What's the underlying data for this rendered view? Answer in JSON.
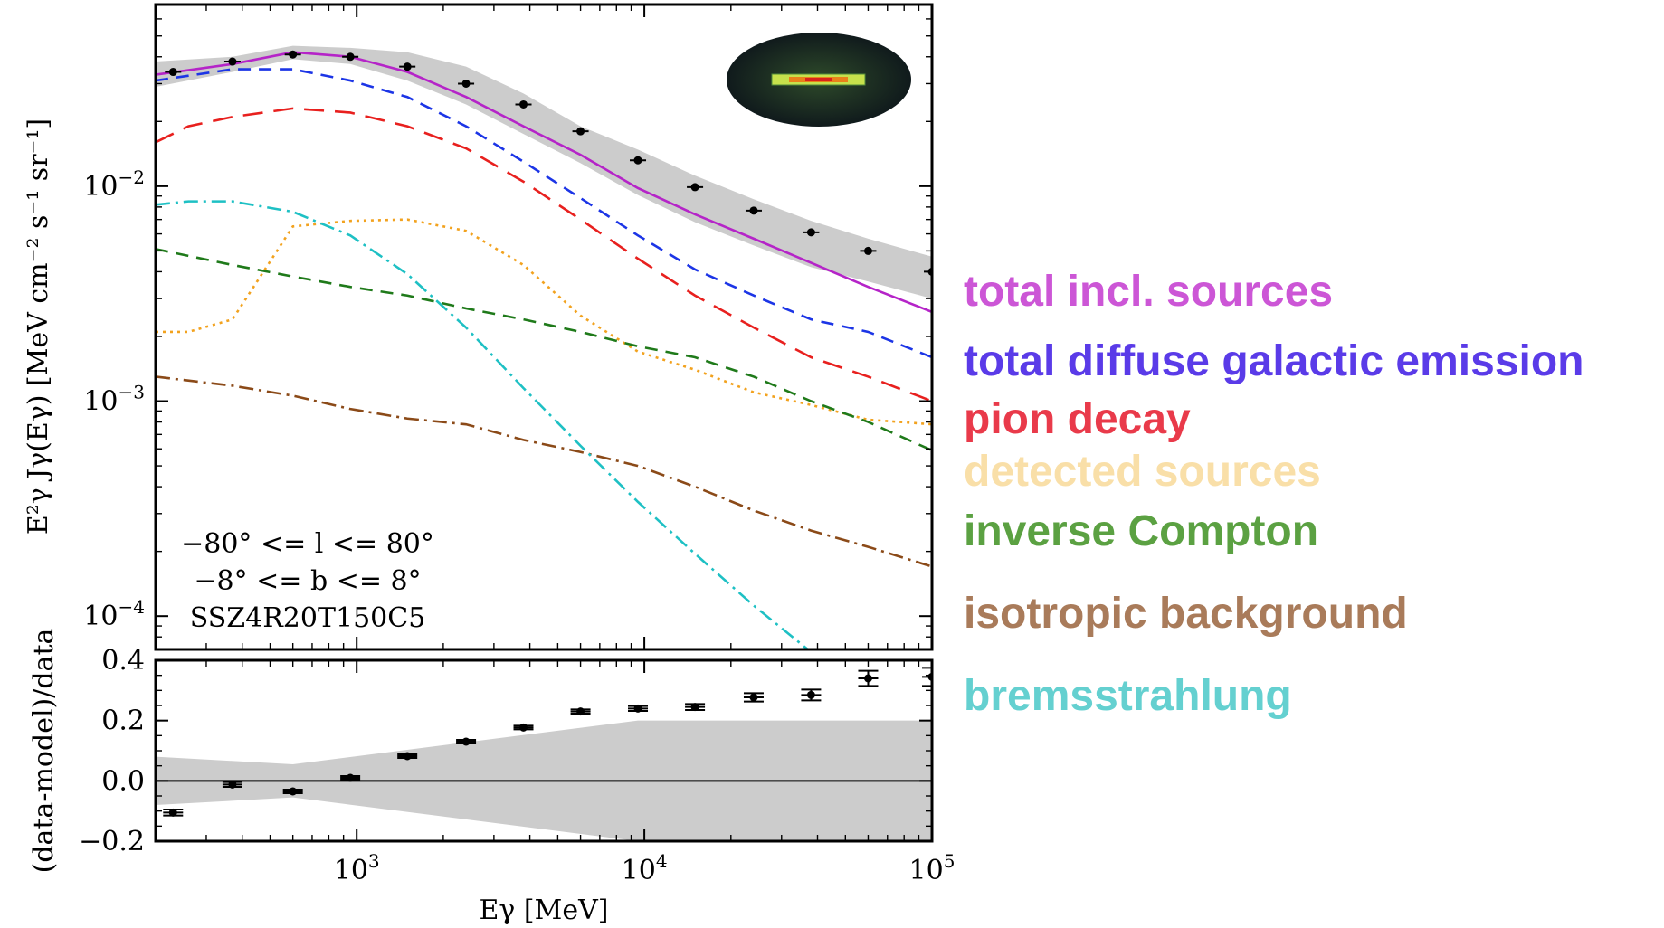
{
  "chart_data": [
    {
      "panel": "spectrum",
      "type": "line",
      "xlabel": "Eγ [MeV]",
      "ylabel": "E²γ Jγ(Eγ) [MeV cm⁻² s⁻¹ sr⁻¹]",
      "xscale": "log",
      "yscale": "log",
      "xlim": [
        200,
        100000
      ],
      "ylim": [
        7e-05,
        0.07
      ],
      "annotations": [
        "−80° <= l <= 80°",
        "−8° <= b <= 8°",
        "SSZ4R20T150C5"
      ],
      "series": [
        {
          "name": "total incl. sources",
          "color": "#b524c8",
          "style": "solid",
          "points": [
            [
              200,
              0.033
            ],
            [
              370,
              0.037
            ],
            [
              600,
              0.042
            ],
            [
              950,
              0.04
            ],
            [
              1500,
              0.034
            ],
            [
              2400,
              0.026
            ],
            [
              3800,
              0.019
            ],
            [
              6000,
              0.014
            ],
            [
              9500,
              0.0098
            ],
            [
              15000,
              0.0074
            ],
            [
              24000,
              0.0057
            ],
            [
              38000,
              0.0044
            ],
            [
              60000,
              0.0034
            ],
            [
              100000,
              0.0026
            ]
          ]
        },
        {
          "name": "total diffuse galactic emission",
          "color": "#1c35e6",
          "style": "dashed",
          "points": [
            [
              200,
              0.031
            ],
            [
              370,
              0.035
            ],
            [
              600,
              0.035
            ],
            [
              950,
              0.031
            ],
            [
              1500,
              0.026
            ],
            [
              2400,
              0.019
            ],
            [
              3800,
              0.013
            ],
            [
              6000,
              0.0088
            ],
            [
              9500,
              0.0059
            ],
            [
              15000,
              0.0041
            ],
            [
              24000,
              0.0031
            ],
            [
              38000,
              0.0024
            ],
            [
              60000,
              0.0021
            ],
            [
              100000,
              0.0016
            ]
          ]
        },
        {
          "name": "pion decay",
          "color": "#e8201e",
          "style": "longdash",
          "points": [
            [
              200,
              0.016
            ],
            [
              260,
              0.019
            ],
            [
              370,
              0.021
            ],
            [
              600,
              0.023
            ],
            [
              950,
              0.022
            ],
            [
              1500,
              0.019
            ],
            [
              2400,
              0.015
            ],
            [
              3800,
              0.0105
            ],
            [
              6000,
              0.007
            ],
            [
              9500,
              0.0046
            ],
            [
              15000,
              0.0031
            ],
            [
              24000,
              0.0022
            ],
            [
              38000,
              0.0016
            ],
            [
              60000,
              0.0013
            ],
            [
              100000,
              0.001
            ]
          ]
        },
        {
          "name": "detected sources",
          "color": "#f2a21e",
          "style": "dotted",
          "points": [
            [
              200,
              0.0021
            ],
            [
              260,
              0.0021
            ],
            [
              370,
              0.0024
            ],
            [
              600,
              0.0065
            ],
            [
              950,
              0.0069
            ],
            [
              1500,
              0.007
            ],
            [
              2400,
              0.0062
            ],
            [
              3800,
              0.0043
            ],
            [
              6000,
              0.0025
            ],
            [
              9500,
              0.0017
            ],
            [
              15000,
              0.0014
            ],
            [
              24000,
              0.0011
            ],
            [
              38000,
              0.00096
            ],
            [
              60000,
              0.00082
            ],
            [
              100000,
              0.00078
            ]
          ]
        },
        {
          "name": "inverse Compton",
          "color": "#1f7a1a",
          "style": "dashed",
          "points": [
            [
              200,
              0.0051
            ],
            [
              370,
              0.0043
            ],
            [
              600,
              0.0038
            ],
            [
              950,
              0.0034
            ],
            [
              1500,
              0.0031
            ],
            [
              2400,
              0.0027
            ],
            [
              3800,
              0.0024
            ],
            [
              6000,
              0.0021
            ],
            [
              9500,
              0.0018
            ],
            [
              15000,
              0.0016
            ],
            [
              24000,
              0.0013
            ],
            [
              38000,
              0.001
            ],
            [
              60000,
              0.0008
            ],
            [
              100000,
              0.00059
            ]
          ]
        },
        {
          "name": "isotropic background",
          "color": "#8b4a18",
          "style": "dashdot",
          "points": [
            [
              200,
              0.0013
            ],
            [
              370,
              0.00118
            ],
            [
              600,
              0.00106
            ],
            [
              950,
              0.00092
            ],
            [
              1500,
              0.00083
            ],
            [
              2400,
              0.00078
            ],
            [
              3800,
              0.00066
            ],
            [
              6000,
              0.00058
            ],
            [
              9500,
              0.0005
            ],
            [
              15000,
              0.0004
            ],
            [
              24000,
              0.00031
            ],
            [
              38000,
              0.00025
            ],
            [
              60000,
              0.00021
            ],
            [
              100000,
              0.00017
            ]
          ]
        },
        {
          "name": "bremsstrahlung",
          "color": "#1ec0c4",
          "style": "dashdot",
          "points": [
            [
              200,
              0.0082
            ],
            [
              260,
              0.0085
            ],
            [
              370,
              0.0085
            ],
            [
              600,
              0.0076
            ],
            [
              950,
              0.0059
            ],
            [
              1500,
              0.0039
            ],
            [
              2400,
              0.0022
            ],
            [
              3800,
              0.00115
            ],
            [
              6000,
              0.00062
            ],
            [
              9500,
              0.00034
            ],
            [
              15000,
              0.000195
            ],
            [
              24000,
              0.000112
            ],
            [
              38000,
              6.8e-05
            ],
            [
              60000,
              4e-05
            ]
          ]
        }
      ],
      "band": {
        "lower": [
          [
            200,
            0.029
          ],
          [
            370,
            0.034
          ],
          [
            600,
            0.039
          ],
          [
            950,
            0.037
          ],
          [
            1500,
            0.031
          ],
          [
            2400,
            0.024
          ],
          [
            3800,
            0.0175
          ],
          [
            6000,
            0.0128
          ],
          [
            9500,
            0.0091
          ],
          [
            15000,
            0.0068
          ],
          [
            24000,
            0.0053
          ],
          [
            38000,
            0.0042
          ],
          [
            60000,
            0.0036
          ],
          [
            100000,
            0.003
          ]
        ],
        "upper": [
          [
            200,
            0.038
          ],
          [
            370,
            0.04
          ],
          [
            600,
            0.045
          ],
          [
            950,
            0.044
          ],
          [
            1500,
            0.042
          ],
          [
            2400,
            0.036
          ],
          [
            3800,
            0.027
          ],
          [
            6000,
            0.019
          ],
          [
            9500,
            0.0148
          ],
          [
            15000,
            0.0112
          ],
          [
            24000,
            0.0087
          ],
          [
            38000,
            0.0069
          ],
          [
            60000,
            0.0057
          ],
          [
            100000,
            0.0047
          ]
        ]
      },
      "data_points": [
        {
          "x": 230,
          "y": 0.034
        },
        {
          "x": 370,
          "y": 0.038
        },
        {
          "x": 600,
          "y": 0.041
        },
        {
          "x": 950,
          "y": 0.04
        },
        {
          "x": 1500,
          "y": 0.036
        },
        {
          "x": 2400,
          "y": 0.03
        },
        {
          "x": 3800,
          "y": 0.024
        },
        {
          "x": 6000,
          "y": 0.018
        },
        {
          "x": 9500,
          "y": 0.0132
        },
        {
          "x": 15000,
          "y": 0.0099
        },
        {
          "x": 24000,
          "y": 0.0077
        },
        {
          "x": 38000,
          "y": 0.0061
        },
        {
          "x": 60000,
          "y": 0.005
        },
        {
          "x": 100000,
          "y": 0.004
        }
      ]
    },
    {
      "panel": "residual",
      "type": "scatter",
      "xlabel": "Eγ [MeV]",
      "ylabel": "(data-model)/data",
      "xscale": "log",
      "xlim": [
        200,
        100000
      ],
      "ylim": [
        -0.2,
        0.4
      ],
      "yticks": [
        "−0.2",
        "0.0",
        "0.2",
        "0.4"
      ],
      "band": {
        "upper": [
          [
            200,
            0.08
          ],
          [
            600,
            0.055
          ],
          [
            9500,
            0.2
          ],
          [
            100000,
            0.2
          ]
        ],
        "lower": [
          [
            200,
            -0.08
          ],
          [
            600,
            -0.055
          ],
          [
            9500,
            -0.2
          ],
          [
            100000,
            -0.2
          ]
        ]
      },
      "data_points": [
        {
          "x": 230,
          "y": -0.105,
          "err": 0.01
        },
        {
          "x": 370,
          "y": -0.012,
          "err": 0.008
        },
        {
          "x": 600,
          "y": -0.035,
          "err": 0.006
        },
        {
          "x": 950,
          "y": 0.01,
          "err": 0.006
        },
        {
          "x": 1500,
          "y": 0.082,
          "err": 0.006
        },
        {
          "x": 2400,
          "y": 0.13,
          "err": 0.006
        },
        {
          "x": 3800,
          "y": 0.177,
          "err": 0.006
        },
        {
          "x": 6000,
          "y": 0.23,
          "err": 0.007
        },
        {
          "x": 9500,
          "y": 0.24,
          "err": 0.008
        },
        {
          "x": 15000,
          "y": 0.245,
          "err": 0.01
        },
        {
          "x": 24000,
          "y": 0.277,
          "err": 0.014
        },
        {
          "x": 38000,
          "y": 0.285,
          "err": 0.018
        },
        {
          "x": 60000,
          "y": 0.34,
          "err": 0.025
        },
        {
          "x": 100000,
          "y": 0.345,
          "err": 0.03
        }
      ]
    }
  ],
  "legend": [
    {
      "label": "total incl. sources",
      "color": "#cc56d6"
    },
    {
      "label": "total diffuse galactic emission",
      "color": "#5a3be8"
    },
    {
      "label": "pion decay",
      "color": "#e93a4a"
    },
    {
      "label": "detected sources",
      "color": "#f9dfa8"
    },
    {
      "label": "inverse Compton",
      "color": "#5ba142"
    },
    {
      "label": "isotropic background",
      "color": "#a97b5a"
    },
    {
      "label": "bremsstrahlung",
      "color": "#64d0d0"
    }
  ],
  "inset": {
    "icon": "sky-map-inset"
  }
}
